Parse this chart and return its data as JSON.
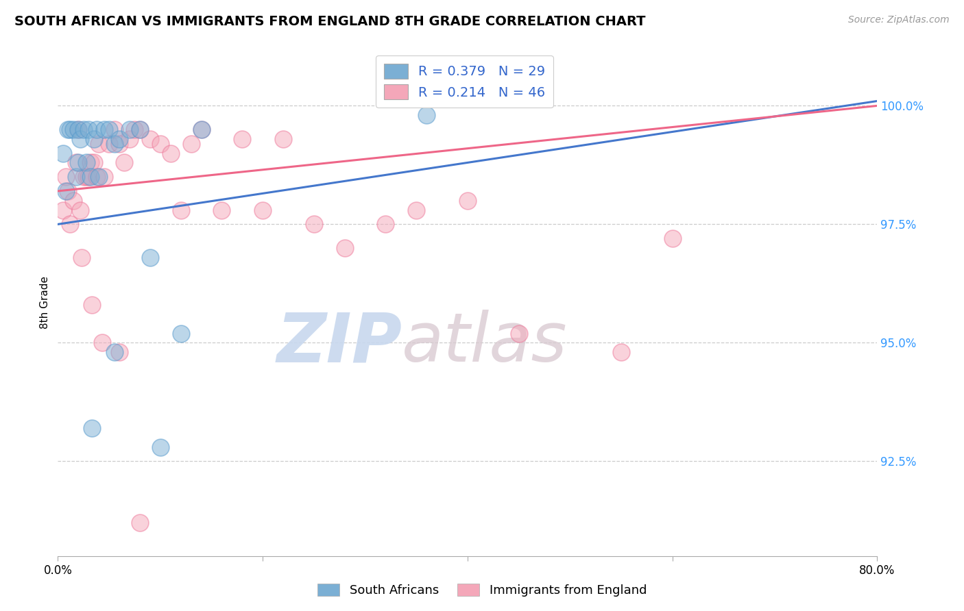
{
  "title": "SOUTH AFRICAN VS IMMIGRANTS FROM ENGLAND 8TH GRADE CORRELATION CHART",
  "source_text": "Source: ZipAtlas.com",
  "ylabel": "8th Grade",
  "xlim": [
    0.0,
    80.0
  ],
  "ylim": [
    90.5,
    101.2
  ],
  "blue_R": 0.379,
  "blue_N": 29,
  "pink_R": 0.214,
  "pink_N": 46,
  "blue_color": "#7BAFD4",
  "pink_color": "#F4A7B9",
  "blue_edge_color": "#5599CC",
  "pink_edge_color": "#EE7799",
  "blue_line_color": "#4477CC",
  "pink_line_color": "#EE6688",
  "legend_blue_label": "South Africans",
  "legend_pink_label": "Immigrants from England",
  "watermark_zip": "ZIP",
  "watermark_atlas": "atlas",
  "shown_yticks": [
    92.5,
    95.0,
    97.5,
    100.0
  ],
  "shown_ytick_labels": [
    "92.5%",
    "95.0%",
    "97.5%",
    "100.0%"
  ],
  "blue_scatter_x": [
    0.5,
    0.8,
    1.0,
    1.2,
    1.5,
    1.8,
    2.0,
    2.0,
    2.2,
    2.5,
    2.8,
    3.0,
    3.2,
    3.5,
    3.8,
    4.0,
    4.5,
    5.0,
    5.5,
    6.0,
    7.0,
    8.0,
    9.0,
    12.0,
    14.0,
    36.0,
    3.3,
    5.5,
    10.0
  ],
  "blue_scatter_y": [
    99.0,
    98.2,
    99.5,
    99.5,
    99.5,
    98.5,
    99.5,
    98.8,
    99.3,
    99.5,
    98.8,
    99.5,
    98.5,
    99.3,
    99.5,
    98.5,
    99.5,
    99.5,
    99.2,
    99.3,
    99.5,
    99.5,
    96.8,
    95.2,
    99.5,
    99.8,
    93.2,
    94.8,
    92.8
  ],
  "pink_scatter_x": [
    0.5,
    0.8,
    1.0,
    1.2,
    1.5,
    1.8,
    2.0,
    2.2,
    2.5,
    2.8,
    3.0,
    3.2,
    3.5,
    3.8,
    4.0,
    4.5,
    5.0,
    5.5,
    6.0,
    6.5,
    7.0,
    7.5,
    8.0,
    9.0,
    10.0,
    11.0,
    12.0,
    13.0,
    14.0,
    16.0,
    18.0,
    20.0,
    22.0,
    25.0,
    28.0,
    32.0,
    35.0,
    40.0,
    45.0,
    55.0,
    60.0,
    2.3,
    3.3,
    4.3,
    6.0,
    8.0
  ],
  "pink_scatter_y": [
    97.8,
    98.5,
    98.2,
    97.5,
    98.0,
    98.8,
    99.5,
    97.8,
    98.5,
    98.5,
    98.5,
    98.8,
    98.8,
    98.5,
    99.2,
    98.5,
    99.2,
    99.5,
    99.2,
    98.8,
    99.3,
    99.5,
    99.5,
    99.3,
    99.2,
    99.0,
    97.8,
    99.2,
    99.5,
    97.8,
    99.3,
    97.8,
    99.3,
    97.5,
    97.0,
    97.5,
    97.8,
    98.0,
    95.2,
    94.8,
    97.2,
    96.8,
    95.8,
    95.0,
    94.8,
    91.2
  ],
  "blue_trend_x0": 0.0,
  "blue_trend_x1": 80.0,
  "blue_trend_y0": 97.5,
  "blue_trend_y1": 100.1,
  "pink_trend_x0": 0.0,
  "pink_trend_x1": 80.0,
  "pink_trend_y0": 98.2,
  "pink_trend_y1": 100.0
}
